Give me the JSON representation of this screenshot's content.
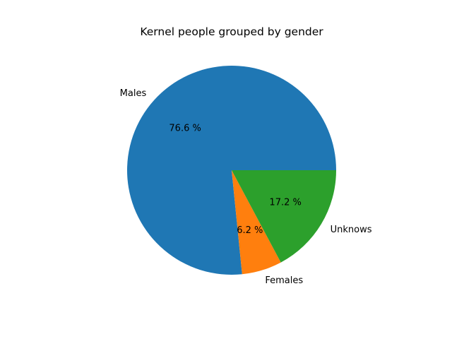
{
  "chart_data": {
    "type": "pie",
    "title": "Kernel people grouped by gender",
    "start_angle_deg": 0,
    "direction": "counterclockwise",
    "slices": [
      {
        "label": "Males",
        "value": 76.6,
        "pct_label": "76.6 %",
        "color": "#1f77b4"
      },
      {
        "label": "Females",
        "value": 6.2,
        "pct_label": "6.2 %",
        "color": "#ff7f0e"
      },
      {
        "label": "Unknows",
        "value": 17.2,
        "pct_label": "17.2 %",
        "color": "#2ca02c"
      }
    ]
  }
}
